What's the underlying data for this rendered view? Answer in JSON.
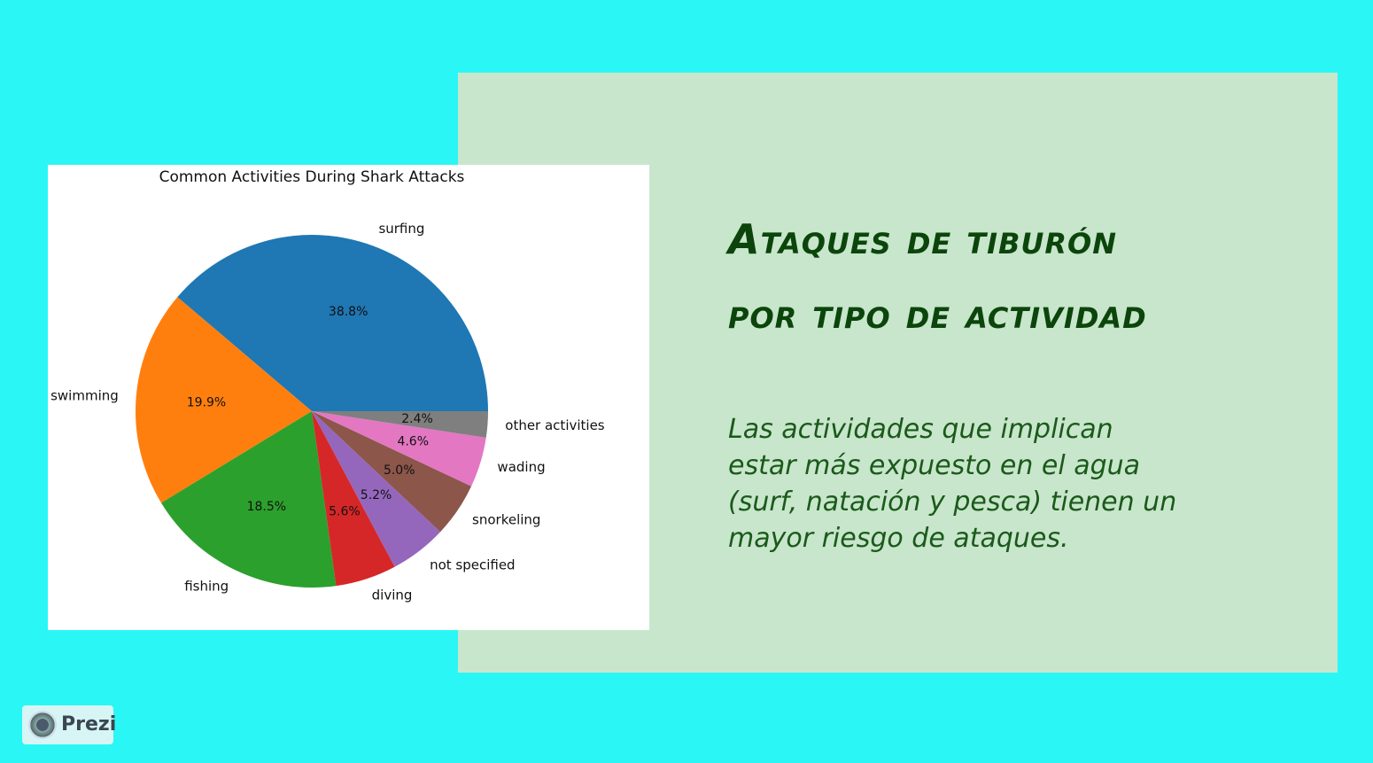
{
  "chart_data": {
    "type": "pie",
    "title": "Common Activities During Shark Attacks",
    "categories": [
      "surfing",
      "swimming",
      "fishing",
      "diving",
      "not specified",
      "snorkeling",
      "wading",
      "other activities"
    ],
    "values": [
      38.8,
      19.9,
      18.5,
      5.6,
      5.2,
      5.0,
      4.6,
      2.4
    ],
    "value_labels": [
      "38.8%",
      "19.9%",
      "18.5%",
      "5.6%",
      "5.2%",
      "5.0%",
      "4.6%",
      "2.4%"
    ],
    "colors": [
      "#1f77b4",
      "#ff7f0e",
      "#2ca02c",
      "#d62728",
      "#9467bd",
      "#8c564b",
      "#e377c2",
      "#7f7f7f"
    ]
  },
  "slide": {
    "heading": [
      "Ataques de tiburón",
      "por tipo de actividad"
    ],
    "body": [
      "Las actividades que implican",
      "estar más expuesto en el agua",
      "(surf, natación y pesca) tienen un",
      "mayor riesgo de ataques."
    ]
  },
  "logo": "Prezi"
}
